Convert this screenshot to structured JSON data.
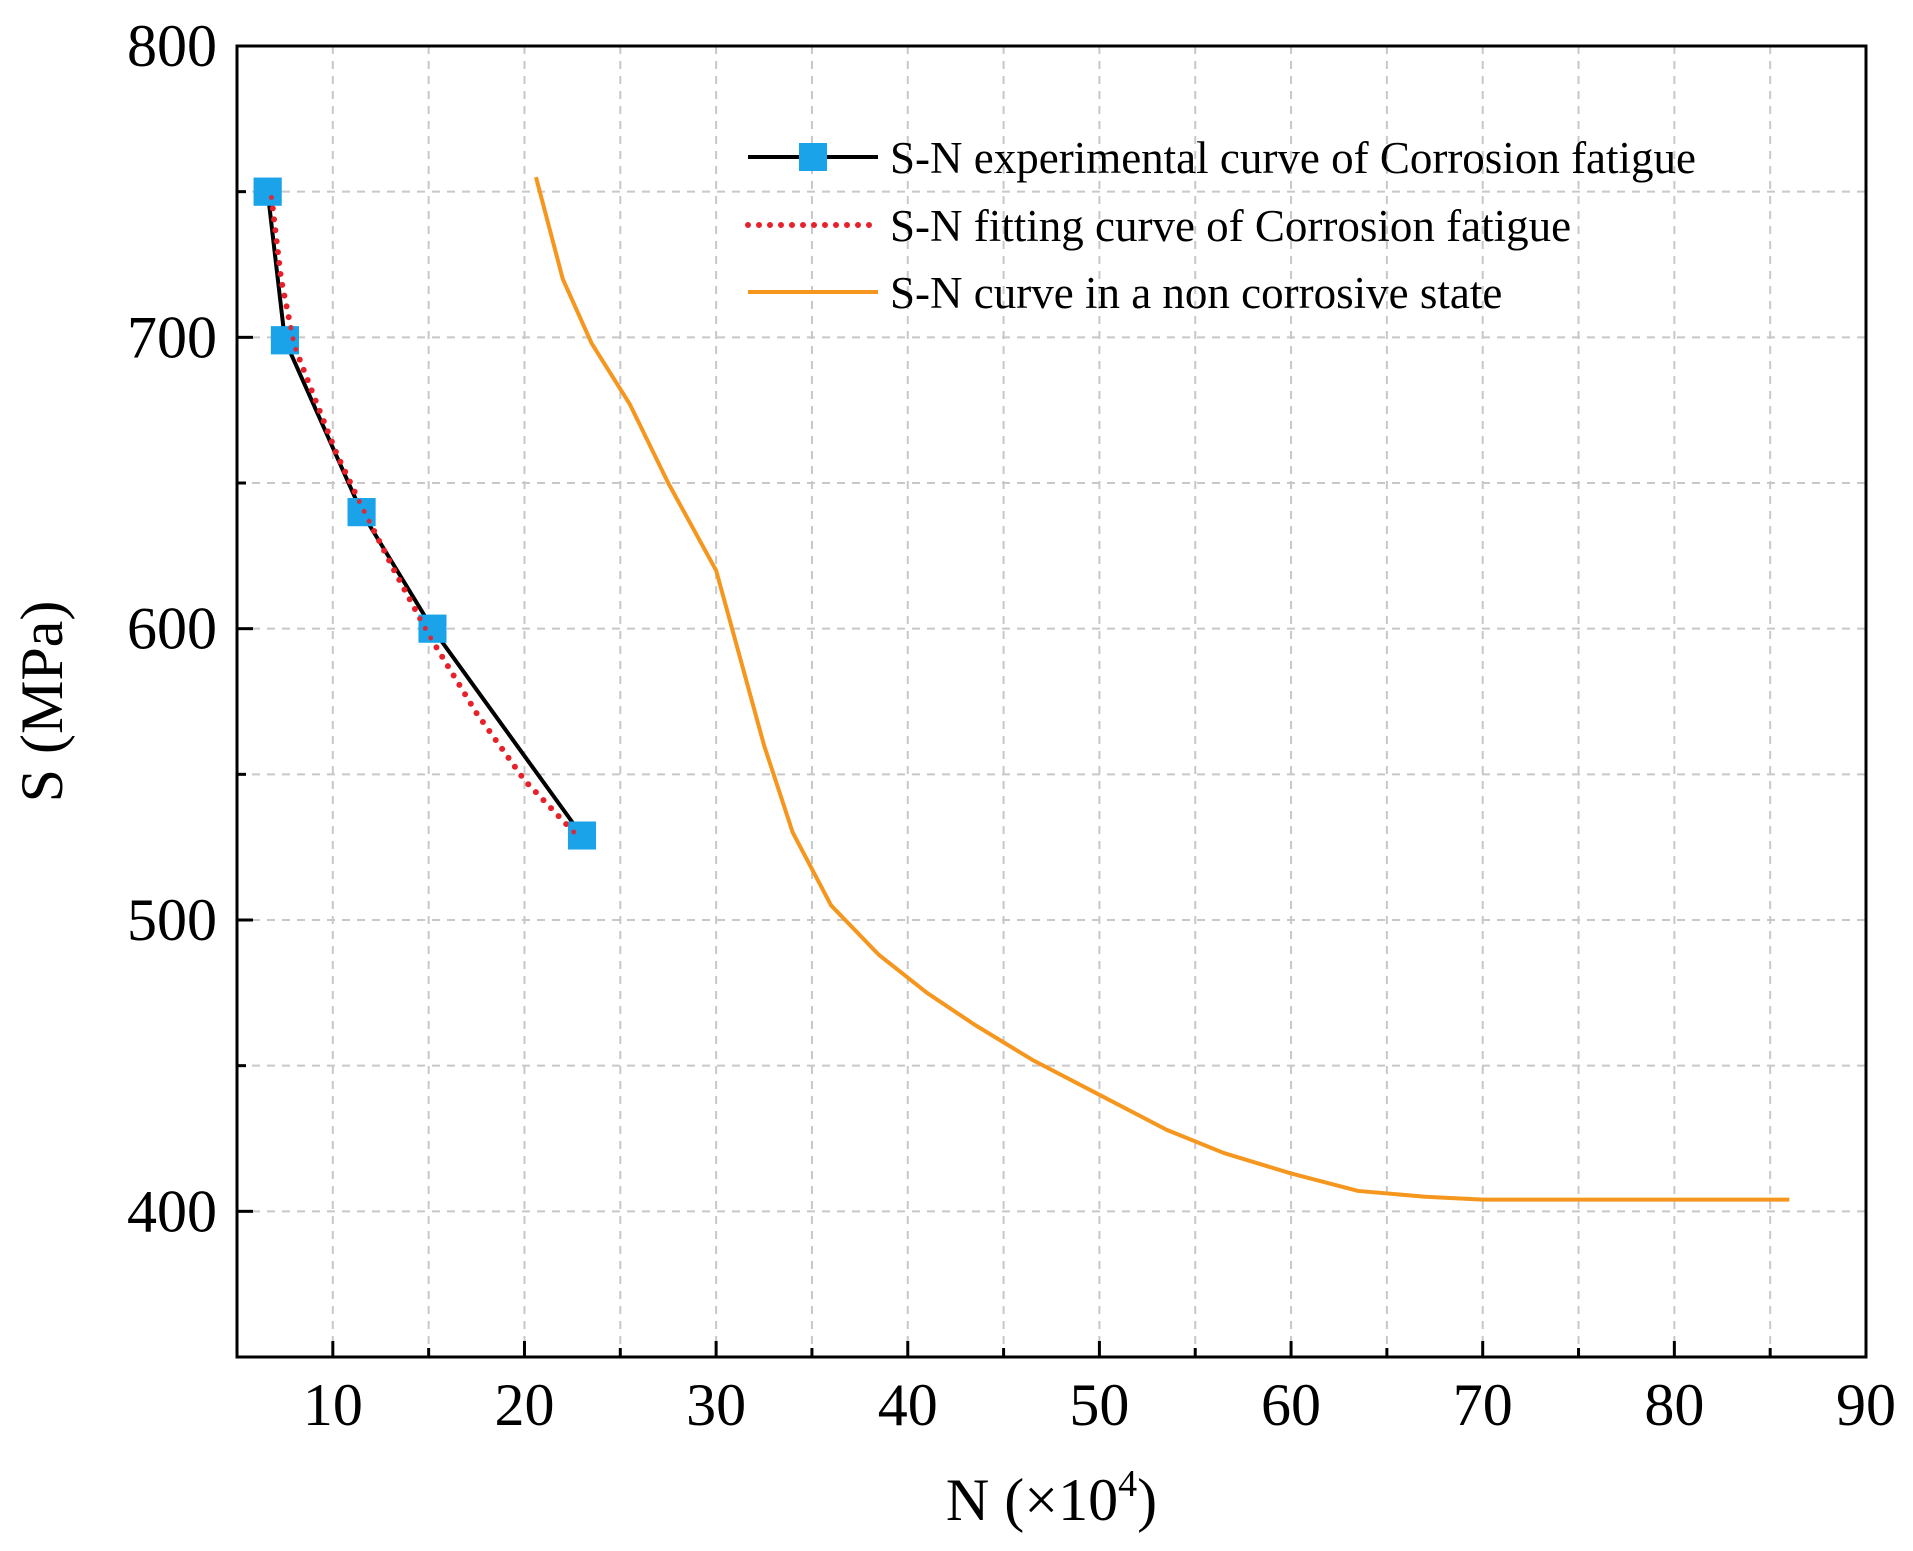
{
  "chart_data": {
    "type": "line",
    "title": "",
    "xlabel": "N (×10",
    "xlabel_sup": "4",
    "xlabel_close": ")",
    "ylabel": "S (MPa)",
    "xlim": [
      5,
      90
    ],
    "ylim": [
      350,
      800
    ],
    "xticks": [
      10,
      20,
      30,
      40,
      50,
      60,
      70,
      80,
      90
    ],
    "yticks": [
      400,
      500,
      600,
      700,
      800
    ],
    "grid": true,
    "legend_position": "top-right",
    "series": [
      {
        "name": "S-N experimental curve of Corrosion fatigue",
        "style": "line-with-square-markers",
        "line_color": "#000000",
        "marker_color": "#1aa3e8",
        "x": [
          6.6,
          7.5,
          11.5,
          15.2,
          23.0
        ],
        "y": [
          750,
          699,
          640,
          600,
          529
        ]
      },
      {
        "name": "S-N fitting curve of Corrosion fatigue",
        "style": "dotted",
        "line_color": "#e8202a",
        "x": [
          6.8,
          7.3,
          8.0,
          9.0,
          10.2,
          11.5,
          13.2,
          15.0,
          17.5,
          20.0,
          22.6
        ],
        "y": [
          748,
          720,
          697,
          680,
          660,
          642,
          620,
          598,
          571,
          548,
          530
        ]
      },
      {
        "name": "S-N curve in a non corrosive state",
        "style": "solid",
        "line_color": "#f5961e",
        "x": [
          20.6,
          22.0,
          23.5,
          25.5,
          27.5,
          30.0,
          32.5,
          34.0,
          36.0,
          38.5,
          41.0,
          43.5,
          46.5,
          50.0,
          53.5,
          56.5,
          60.0,
          63.5,
          67.0,
          70.0,
          75.0,
          80.0,
          86.0
        ],
        "y": [
          755,
          720,
          698,
          677,
          650,
          620,
          560,
          530,
          505,
          488,
          475,
          464,
          452,
          440,
          428,
          420,
          413,
          407,
          405,
          404,
          404,
          404,
          404
        ]
      }
    ]
  }
}
